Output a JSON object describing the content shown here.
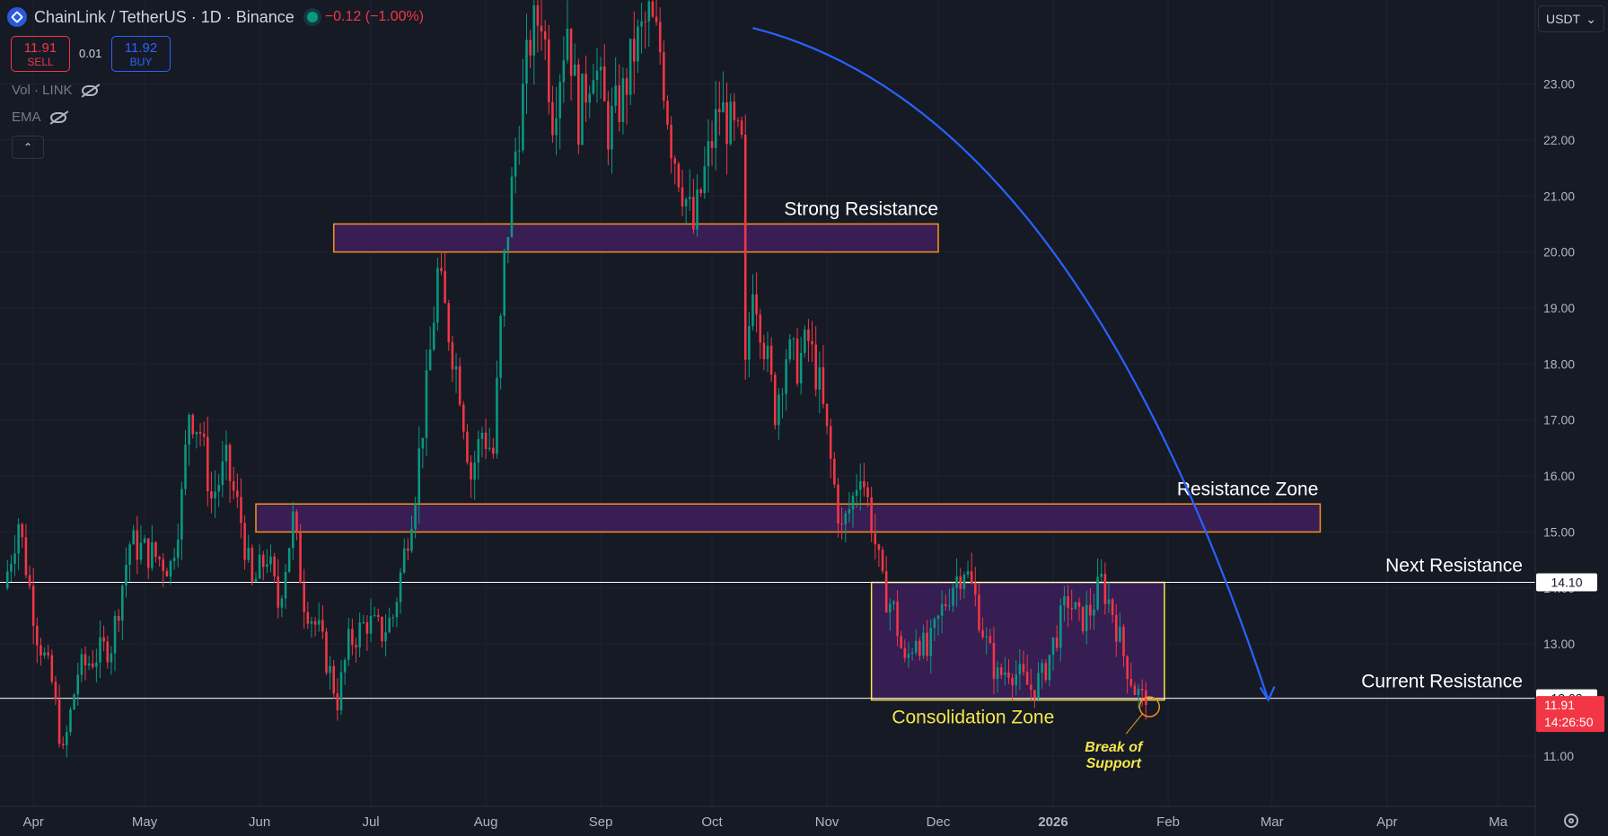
{
  "header": {
    "title": "ChainLink / TetherUS · 1D · Binance",
    "change": "−0.12 (−1.00%)",
    "sell_price": "11.91",
    "sell_label": "SELL",
    "buy_price": "11.92",
    "buy_label": "BUY",
    "spread": "0.01",
    "indicator_vol": "Vol · LINK",
    "indicator_ema": "EMA",
    "collapse_glyph": "⌃",
    "currency": "USDT",
    "currency_caret": "⌄"
  },
  "colors": {
    "background": "#161a25",
    "up": "#089981",
    "down": "#f23645",
    "zone_border": "#f7931a",
    "zone_fill": "#3c1f5a",
    "consolidation_border": "#f5e74a",
    "annotation_yellow": "#f5e74a",
    "arrow": "#2962ff",
    "level_line": "#ffffff"
  },
  "chart_data": {
    "type": "candlestick",
    "title": "",
    "xlabel": "",
    "ylabel": "",
    "ylim": [
      10.1,
      24.5
    ],
    "xlim": [
      "2025-03-23",
      "2026-05-11"
    ],
    "y_ticks": [
      "11.00",
      "12.00",
      "13.00",
      "14.00",
      "15.00",
      "16.00",
      "17.00",
      "18.00",
      "19.00",
      "20.00",
      "21.00",
      "22.00",
      "23.00"
    ],
    "x_ticks": [
      {
        "label": "Apr",
        "date": "2025-04-01"
      },
      {
        "label": "May",
        "date": "2025-05-01"
      },
      {
        "label": "Jun",
        "date": "2025-06-01"
      },
      {
        "label": "Jul",
        "date": "2025-07-01"
      },
      {
        "label": "Aug",
        "date": "2025-08-01"
      },
      {
        "label": "Sep",
        "date": "2025-09-01"
      },
      {
        "label": "Oct",
        "date": "2025-10-01"
      },
      {
        "label": "Nov",
        "date": "2025-11-01"
      },
      {
        "label": "Dec",
        "date": "2025-12-01"
      },
      {
        "label": "2026",
        "date": "2026-01-01"
      },
      {
        "label": "Feb",
        "date": "2026-02-01"
      },
      {
        "label": "Mar",
        "date": "2026-03-01"
      },
      {
        "label": "Apr",
        "date": "2026-04-01"
      },
      {
        "label": "Ma",
        "date": "2026-05-01"
      }
    ],
    "grid": true,
    "close_path": [
      [
        "2025-03-24",
        14.0
      ],
      [
        "2025-03-28",
        15.2
      ],
      [
        "2025-04-02",
        13.2
      ],
      [
        "2025-04-06",
        12.3
      ],
      [
        "2025-04-09",
        11.0
      ],
      [
        "2025-04-13",
        12.5
      ],
      [
        "2025-04-18",
        12.8
      ],
      [
        "2025-04-22",
        13.0
      ],
      [
        "2025-04-27",
        14.8
      ],
      [
        "2025-05-03",
        14.6
      ],
      [
        "2025-05-08",
        14.4
      ],
      [
        "2025-05-11",
        15.6
      ],
      [
        "2025-05-13",
        17.2
      ],
      [
        "2025-05-16",
        16.8
      ],
      [
        "2025-05-19",
        15.6
      ],
      [
        "2025-05-23",
        16.2
      ],
      [
        "2025-05-27",
        15.2
      ],
      [
        "2025-05-30",
        14.0
      ],
      [
        "2025-06-03",
        14.6
      ],
      [
        "2025-06-06",
        13.7
      ],
      [
        "2025-06-10",
        15.2
      ],
      [
        "2025-06-13",
        13.8
      ],
      [
        "2025-06-17",
        13.2
      ],
      [
        "2025-06-22",
        12.0
      ],
      [
        "2025-06-25",
        13.0
      ],
      [
        "2025-06-30",
        13.4
      ],
      [
        "2025-07-04",
        13.2
      ],
      [
        "2025-07-07",
        13.5
      ],
      [
        "2025-07-10",
        14.6
      ],
      [
        "2025-07-13",
        15.8
      ],
      [
        "2025-07-16",
        17.5
      ],
      [
        "2025-07-19",
        19.6
      ],
      [
        "2025-07-22",
        18.6
      ],
      [
        "2025-07-25",
        17.6
      ],
      [
        "2025-07-28",
        16.0
      ],
      [
        "2025-07-31",
        16.8
      ],
      [
        "2025-08-03",
        16.4
      ],
      [
        "2025-08-06",
        19.8
      ],
      [
        "2025-08-09",
        21.8
      ],
      [
        "2025-08-13",
        23.8
      ],
      [
        "2025-08-16",
        24.3
      ],
      [
        "2025-08-19",
        22.5
      ],
      [
        "2025-08-23",
        24.1
      ],
      [
        "2025-08-26",
        22.4
      ],
      [
        "2025-08-30",
        23.5
      ],
      [
        "2025-09-03",
        22.2
      ],
      [
        "2025-09-07",
        22.8
      ],
      [
        "2025-09-10",
        23.6
      ],
      [
        "2025-09-14",
        24.2
      ],
      [
        "2025-09-17",
        23.6
      ],
      [
        "2025-09-20",
        22.0
      ],
      [
        "2025-09-23",
        21.2
      ],
      [
        "2025-09-26",
        20.4
      ],
      [
        "2025-09-29",
        21.4
      ],
      [
        "2025-10-03",
        22.6
      ],
      [
        "2025-10-06",
        22.2
      ],
      [
        "2025-10-09",
        21.8
      ],
      [
        "2025-10-10",
        17.8
      ],
      [
        "2025-10-12",
        19.6
      ],
      [
        "2025-10-15",
        18.4
      ],
      [
        "2025-10-18",
        17.2
      ],
      [
        "2025-10-21",
        18.2
      ],
      [
        "2025-10-24",
        18.0
      ],
      [
        "2025-10-27",
        18.4
      ],
      [
        "2025-10-30",
        17.6
      ],
      [
        "2025-11-03",
        15.8
      ],
      [
        "2025-11-05",
        15.0
      ],
      [
        "2025-11-08",
        15.6
      ],
      [
        "2025-11-10",
        16.2
      ],
      [
        "2025-11-13",
        15.2
      ],
      [
        "2025-11-16",
        14.0
      ],
      [
        "2025-11-19",
        13.6
      ],
      [
        "2025-11-22",
        12.6
      ],
      [
        "2025-11-25",
        13.2
      ],
      [
        "2025-11-28",
        12.8
      ],
      [
        "2025-12-02",
        13.6
      ],
      [
        "2025-12-05",
        14.1
      ],
      [
        "2025-12-08",
        14.4
      ],
      [
        "2025-12-11",
        13.8
      ],
      [
        "2025-12-14",
        13.0
      ],
      [
        "2025-12-17",
        12.4
      ],
      [
        "2025-12-20",
        12.6
      ],
      [
        "2025-12-23",
        12.4
      ],
      [
        "2025-12-26",
        12.2
      ],
      [
        "2025-12-29",
        12.4
      ],
      [
        "2026-01-02",
        13.2
      ],
      [
        "2026-01-05",
        13.8
      ],
      [
        "2026-01-08",
        13.4
      ],
      [
        "2026-01-11",
        13.6
      ],
      [
        "2026-01-14",
        14.1
      ],
      [
        "2026-01-17",
        13.6
      ],
      [
        "2026-01-20",
        12.8
      ],
      [
        "2026-01-23",
        12.2
      ],
      [
        "2026-01-26",
        11.91
      ]
    ],
    "zones": [
      {
        "label": "Strong Resistance",
        "date_from": "2025-06-21",
        "date_to": "2025-12-01",
        "y_from": 20.0,
        "y_to": 20.5
      },
      {
        "label": "Resistance Zone",
        "date_from": "2025-05-31",
        "date_to": "2026-03-14",
        "y_from": 15.0,
        "y_to": 15.5
      },
      {
        "label": "Consolidation Zone",
        "date_from": "2025-11-13",
        "date_to": "2026-01-31",
        "y_from": 12.0,
        "y_to": 14.1
      }
    ],
    "levels": [
      {
        "label": "Next Resistance",
        "value": 14.1,
        "value_label": "14.10"
      },
      {
        "label": "Current Resistance",
        "value": 12.03,
        "value_label": "12.03"
      }
    ],
    "last_price": {
      "value": 11.91,
      "value_label": "11.91",
      "countdown": "14:26:50"
    },
    "annotations": {
      "break_of_support_line1": "Break of",
      "break_of_support_line2": "Support"
    },
    "forecast_arrow": {
      "from_date": "2025-10-12",
      "from_value": 24.0,
      "to_date": "2026-02-28",
      "to_value": 12.0
    }
  }
}
